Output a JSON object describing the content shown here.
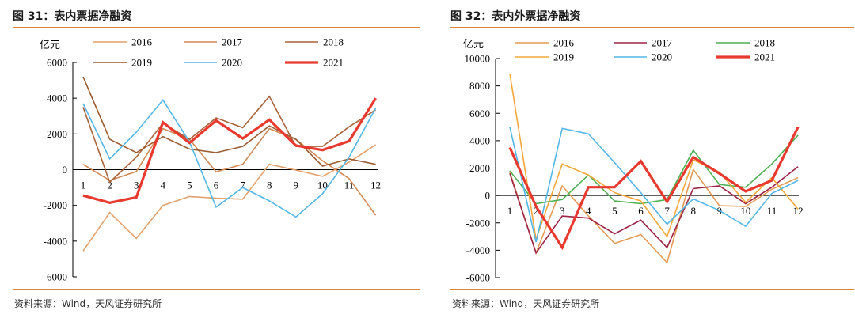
{
  "left": {
    "title": "图 31：表内票据净融资",
    "source": "资料来源：Wind，天风证券研究所",
    "chart_data": {
      "type": "line",
      "title": "表内票据净融资",
      "unit": "亿元",
      "x": [
        "1",
        "2",
        "3",
        "4",
        "5",
        "6",
        "7",
        "8",
        "9",
        "10",
        "11",
        "12"
      ],
      "ylim": [
        -6000,
        6000
      ],
      "yticks": [
        6000,
        4000,
        2000,
        0,
        -2000,
        -4000,
        -6000
      ],
      "grid": false,
      "series": [
        {
          "name": "2016",
          "color": "#e3a06a",
          "width": 1.6,
          "values": [
            -4550,
            -2400,
            -3850,
            -2000,
            -1500,
            -1600,
            -1650,
            300,
            -20,
            -370,
            420,
            1400
          ]
        },
        {
          "name": "2017",
          "color": "#d18a55",
          "width": 1.6,
          "values": [
            300,
            -600,
            -100,
            2300,
            1700,
            -120,
            300,
            2300,
            1700,
            500,
            -500,
            -2550
          ]
        },
        {
          "name": "2018",
          "color": "#a8633a",
          "width": 1.6,
          "values": [
            3500,
            -700,
            700,
            2600,
            1700,
            2900,
            2350,
            4100,
            1300,
            1300,
            2400,
            3350
          ]
        },
        {
          "name": "2019",
          "color": "#9a5c30",
          "width": 1.6,
          "values": [
            5200,
            1700,
            950,
            1850,
            1150,
            950,
            1300,
            2450,
            1700,
            200,
            600,
            300
          ]
        },
        {
          "name": "2020",
          "color": "#54b6e6",
          "width": 1.6,
          "values": [
            3700,
            600,
            2100,
            3900,
            1550,
            -2100,
            -1000,
            -1750,
            -2650,
            -1350,
            700,
            3450
          ]
        },
        {
          "name": "2021",
          "color": "#e8392f",
          "width": 3.2,
          "values": [
            -1450,
            -1850,
            -1550,
            2650,
            1500,
            2750,
            1750,
            2800,
            1350,
            1100,
            1600,
            4000
          ]
        }
      ]
    }
  },
  "right": {
    "title": "图 32：表内外票据净融资",
    "source": "资料来源：Wind，天风证券研究所",
    "chart_data": {
      "type": "line",
      "title": "表内外票据净融资",
      "unit": "亿元",
      "x": [
        "1",
        "2",
        "3",
        "4",
        "5",
        "6",
        "7",
        "8",
        "9",
        "10",
        "11",
        "12"
      ],
      "ylim": [
        -6000,
        10000
      ],
      "yticks": [
        10000,
        8000,
        6000,
        4000,
        2000,
        0,
        -2000,
        -4000,
        -6000
      ],
      "grid": false,
      "series": [
        {
          "name": "2016",
          "color": "#e39a55",
          "width": 1.6,
          "values": [
            1700,
            -4200,
            700,
            -1500,
            -3500,
            -2850,
            -4900,
            1900,
            -750,
            -800,
            450,
            1300
          ]
        },
        {
          "name": "2017",
          "color": "#9b2343",
          "width": 1.6,
          "values": [
            1600,
            -4200,
            -1500,
            -1650,
            -2800,
            -1800,
            -3800,
            500,
            700,
            -600,
            600,
            2100
          ]
        },
        {
          "name": "2018",
          "color": "#4caf50",
          "width": 1.6,
          "values": [
            1800,
            -600,
            -300,
            1500,
            -400,
            -600,
            -300,
            3300,
            800,
            600,
            2300,
            4400
          ]
        },
        {
          "name": "2019",
          "color": "#f3a73a",
          "width": 1.6,
          "values": [
            8900,
            -3200,
            2300,
            1500,
            200,
            -400,
            -3000,
            2600,
            1700,
            -500,
            1300,
            -1000
          ]
        },
        {
          "name": "2020",
          "color": "#54b6e6",
          "width": 1.6,
          "values": [
            5000,
            -3400,
            4900,
            4500,
            2400,
            200,
            -2100,
            -250,
            -1100,
            -2250,
            150,
            1100
          ]
        },
        {
          "name": "2021",
          "color": "#e8392f",
          "width": 3.2,
          "values": [
            3500,
            -800,
            -3800,
            600,
            600,
            2500,
            -450,
            2800,
            1600,
            300,
            1100,
            5000
          ]
        }
      ]
    }
  }
}
